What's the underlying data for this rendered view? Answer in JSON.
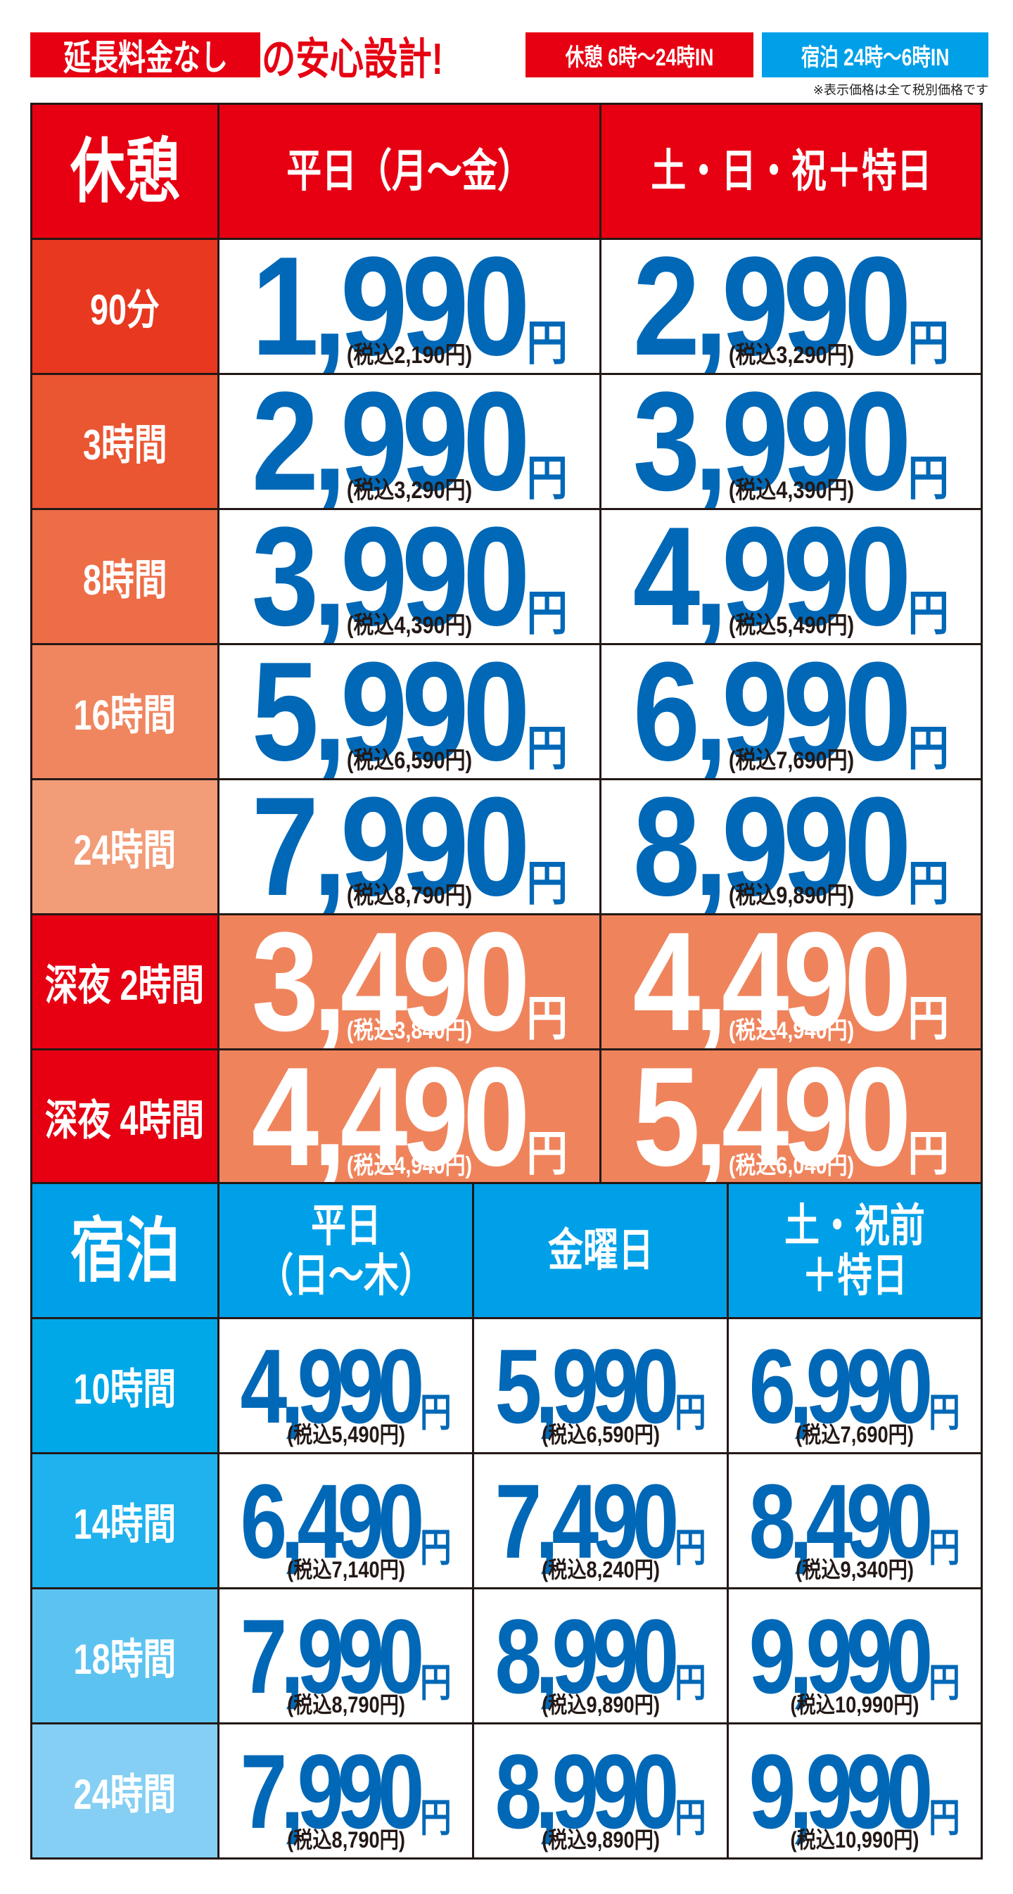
{
  "header": {
    "tagline_main": "延長料金なし",
    "tagline_sub": "の安心設計!",
    "rest_hours": "休憩 6時〜24時IN",
    "stay_hours": "宿泊 24時〜6時IN",
    "note": "※表示価格は全て税別価格です"
  },
  "colors": {
    "red": "#e60012",
    "blue_price": "#0068b7",
    "night_cell": "#ef845c",
    "stay_blue": "#00a0e9"
  },
  "rest": {
    "title": "休憩",
    "columns": [
      "平日（月〜金）",
      "土・日・祝＋特日"
    ],
    "rows": [
      {
        "label": "90分",
        "color": "#e83820",
        "prices": [
          {
            "price": "1,990",
            "tax": "(税込2,190円)"
          },
          {
            "price": "2,990",
            "tax": "(税込3,290円)"
          }
        ]
      },
      {
        "label": "3時間",
        "color": "#ea5532",
        "prices": [
          {
            "price": "2,990",
            "tax": "(税込3,290円)"
          },
          {
            "price": "3,990",
            "tax": "(税込4,390円)"
          }
        ]
      },
      {
        "label": "8時間",
        "color": "#ed6d46",
        "prices": [
          {
            "price": "3,990",
            "tax": "(税込4,390円)"
          },
          {
            "price": "4,990",
            "tax": "(税込5,490円)"
          }
        ]
      },
      {
        "label": "16時間",
        "color": "#f08660",
        "prices": [
          {
            "price": "5,990",
            "tax": "(税込6,590円)"
          },
          {
            "price": "6,990",
            "tax": "(税込7,690円)"
          }
        ]
      },
      {
        "label": "24時間",
        "color": "#f29c78",
        "prices": [
          {
            "price": "7,990",
            "tax": "(税込8,790円)"
          },
          {
            "price": "8,990",
            "tax": "(税込9,890円)"
          }
        ]
      },
      {
        "label": "深夜 2時間",
        "color": "#e60012",
        "night": true,
        "prices": [
          {
            "price": "3,490",
            "tax": "(税込3,840円)"
          },
          {
            "price": "4,490",
            "tax": "(税込4,940円)"
          }
        ]
      },
      {
        "label": "深夜 4時間",
        "color": "#e60012",
        "night": true,
        "prices": [
          {
            "price": "4,490",
            "tax": "(税込4,940円)"
          },
          {
            "price": "5,490",
            "tax": "(税込6,040円)"
          }
        ]
      }
    ]
  },
  "stay": {
    "title": "宿泊",
    "columns": [
      "平日\n（日〜木）",
      "金曜日",
      "土・祝前\n＋特日"
    ],
    "rows": [
      {
        "label": "10時間",
        "color": "#00a8e8",
        "prices": [
          {
            "price": "4,990",
            "tax": "(税込5,490円)"
          },
          {
            "price": "5,990",
            "tax": "(税込6,590円)"
          },
          {
            "price": "6,990",
            "tax": "(税込7,690円)"
          }
        ]
      },
      {
        "label": "14時間",
        "color": "#1fb2ee",
        "prices": [
          {
            "price": "6,490",
            "tax": "(税込7,140円)"
          },
          {
            "price": "7,490",
            "tax": "(税込8,240円)"
          },
          {
            "price": "8,490",
            "tax": "(税込9,340円)"
          }
        ]
      },
      {
        "label": "18時間",
        "color": "#5cc3f1",
        "prices": [
          {
            "price": "7,990",
            "tax": "(税込8,790円)"
          },
          {
            "price": "8,990",
            "tax": "(税込9,890円)"
          },
          {
            "price": "9,990",
            "tax": "(税込10,990円)"
          }
        ]
      },
      {
        "label": "24時間",
        "color": "#84cff3",
        "prices": [
          {
            "price": "7,990",
            "tax": "(税込8,790円)"
          },
          {
            "price": "8,990",
            "tax": "(税込9,890円)"
          },
          {
            "price": "9,990",
            "tax": "(税込10,990円)"
          }
        ]
      }
    ],
    "yen": "円"
  }
}
